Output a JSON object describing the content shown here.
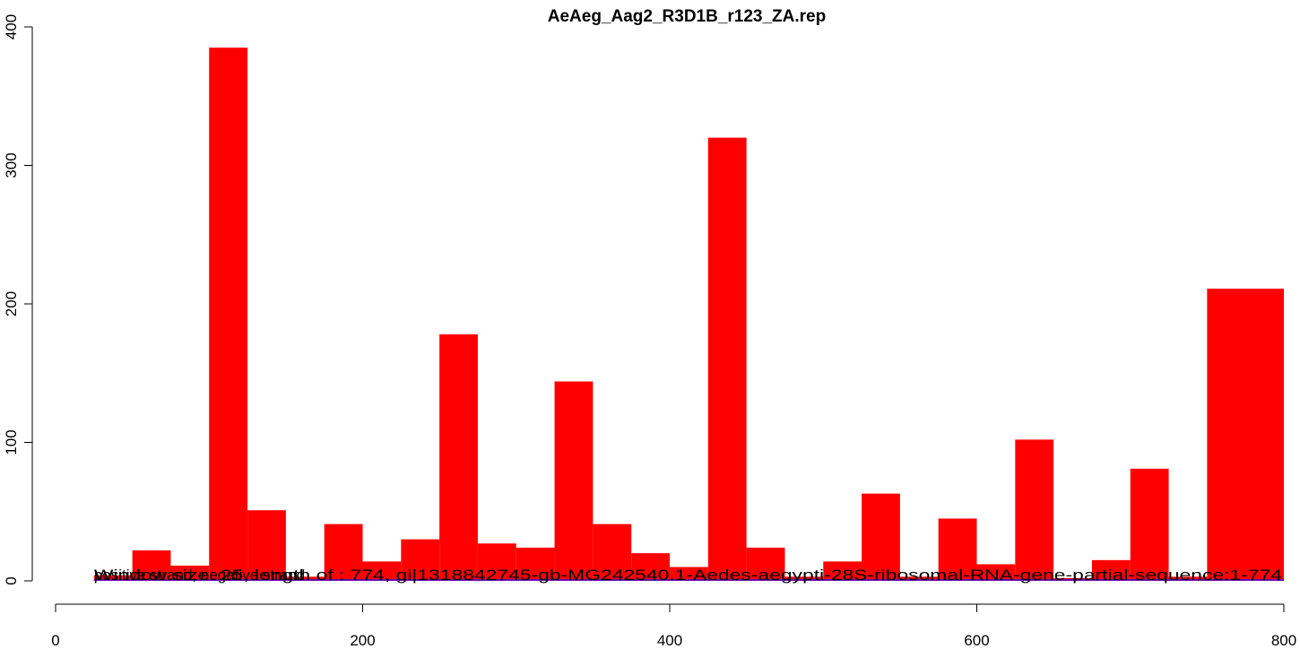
{
  "chart_data": {
    "type": "bar",
    "title": "AeAeg_Aag2_R3D1B_r123_ZA.rep",
    "xlabel": "",
    "ylabel": "",
    "xlim": [
      0,
      800
    ],
    "ylim": [
      0,
      400
    ],
    "x_ticks": [
      0,
      200,
      400,
      600,
      800
    ],
    "y_ticks": [
      0,
      100,
      200,
      300,
      400
    ],
    "grid": false,
    "bar_color": "#ff0000",
    "line_color": "#6a0dad",
    "bin_width": 25,
    "bins": [
      {
        "x0": 25,
        "x1": 50,
        "value": 4
      },
      {
        "x0": 50,
        "x1": 75,
        "value": 22
      },
      {
        "x0": 75,
        "x1": 100,
        "value": 11
      },
      {
        "x0": 100,
        "x1": 125,
        "value": 385
      },
      {
        "x0": 125,
        "x1": 150,
        "value": 51
      },
      {
        "x0": 150,
        "x1": 175,
        "value": 3
      },
      {
        "x0": 175,
        "x1": 200,
        "value": 41
      },
      {
        "x0": 200,
        "x1": 225,
        "value": 14
      },
      {
        "x0": 225,
        "x1": 250,
        "value": 30
      },
      {
        "x0": 250,
        "x1": 275,
        "value": 178
      },
      {
        "x0": 275,
        "x1": 300,
        "value": 27
      },
      {
        "x0": 300,
        "x1": 325,
        "value": 24
      },
      {
        "x0": 325,
        "x1": 350,
        "value": 144
      },
      {
        "x0": 350,
        "x1": 375,
        "value": 41
      },
      {
        "x0": 375,
        "x1": 400,
        "value": 20
      },
      {
        "x0": 400,
        "x1": 425,
        "value": 10
      },
      {
        "x0": 425,
        "x1": 450,
        "value": 320
      },
      {
        "x0": 450,
        "x1": 475,
        "value": 24
      },
      {
        "x0": 475,
        "x1": 500,
        "value": 3
      },
      {
        "x0": 500,
        "x1": 525,
        "value": 14
      },
      {
        "x0": 525,
        "x1": 550,
        "value": 63
      },
      {
        "x0": 550,
        "x1": 575,
        "value": 3
      },
      {
        "x0": 575,
        "x1": 600,
        "value": 45
      },
      {
        "x0": 600,
        "x1": 625,
        "value": 12
      },
      {
        "x0": 625,
        "x1": 650,
        "value": 102
      },
      {
        "x0": 650,
        "x1": 675,
        "value": 2
      },
      {
        "x0": 675,
        "x1": 700,
        "value": 15
      },
      {
        "x0": 700,
        "x1": 725,
        "value": 81
      },
      {
        "x0": 725,
        "x1": 750,
        "value": 3
      },
      {
        "x0": 750,
        "x1": 800,
        "value": 211
      }
    ],
    "overlay_labels": [
      {
        "text": "positive strand, negative strand",
        "x": 25,
        "y": 0
      },
      {
        "text": "Window size: 25, length of : 774, gi|1318842745-gb-MG242540.1-Aedes-aegypti-28S-ribosomal-RNA-gene-partial-sequence:1-774",
        "x": 25,
        "y": 0
      }
    ],
    "baseline_line": {
      "x_start": 25,
      "x_end": 800,
      "y": 0
    }
  }
}
